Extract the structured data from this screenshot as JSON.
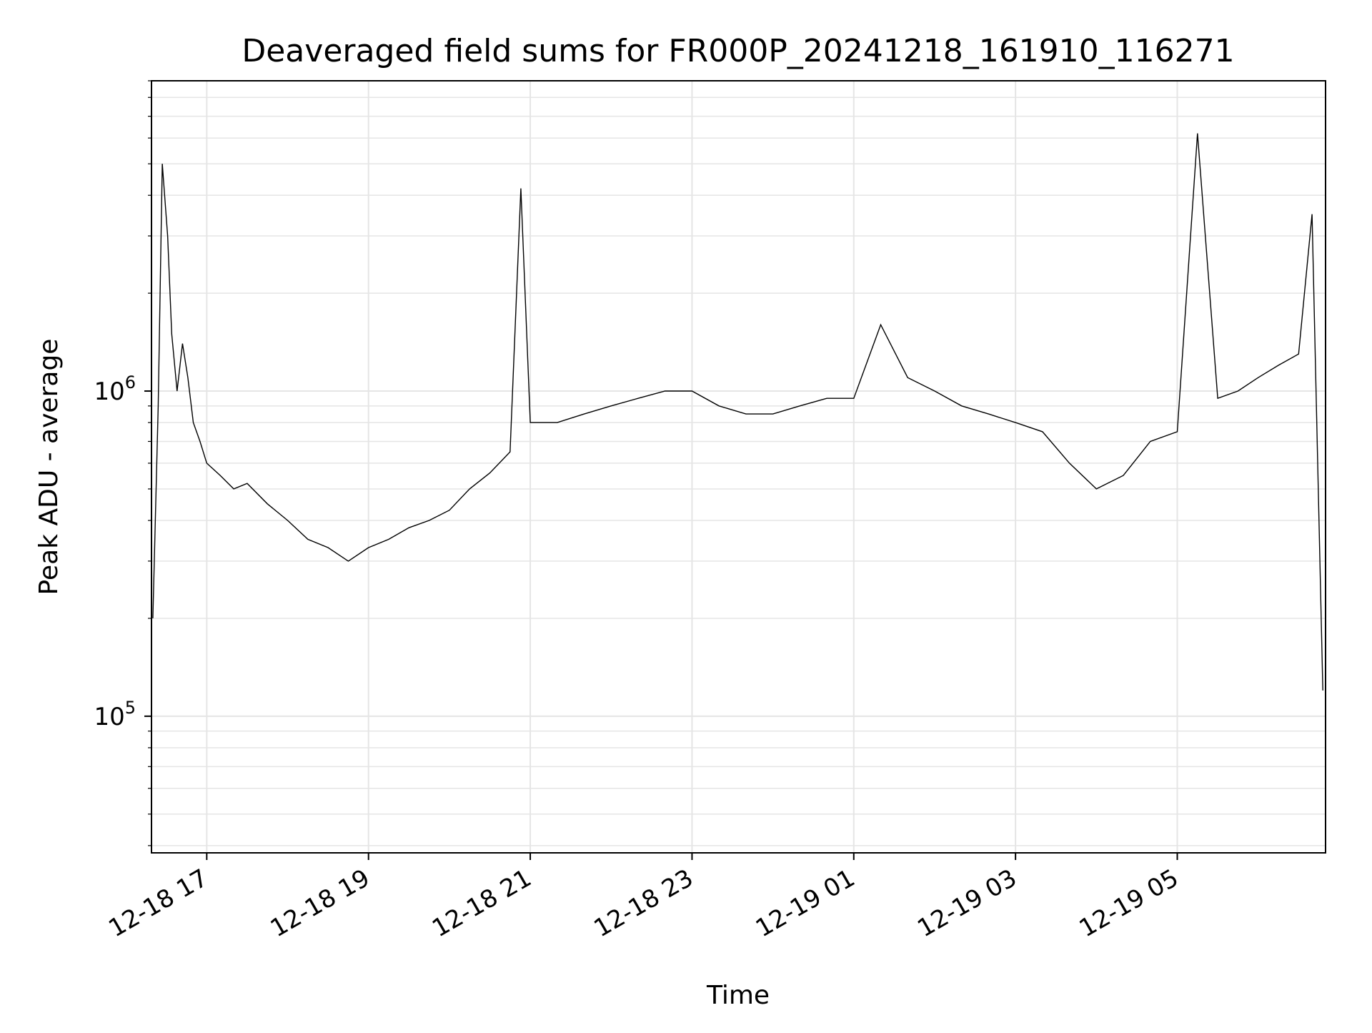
{
  "chart_data": {
    "type": "line",
    "title": "Deaveraged field sums for FR000P_20241218_161910_116271",
    "xlabel": "Time",
    "ylabel": "Peak ADU - average",
    "yscale": "log",
    "ylim": [
      38000,
      9000000
    ],
    "xlim": [
      "2024-12-18 16:19",
      "2024-12-19 06:50"
    ],
    "grid": true,
    "line_color": "#000000",
    "x_ticks": [
      {
        "label": "12-18 17",
        "time": "2024-12-18 17:00"
      },
      {
        "label": "12-18 19",
        "time": "2024-12-18 19:00"
      },
      {
        "label": "12-18 21",
        "time": "2024-12-18 21:00"
      },
      {
        "label": "12-18 23",
        "time": "2024-12-18 23:00"
      },
      {
        "label": "12-19 01",
        "time": "2024-12-19 01:00"
      },
      {
        "label": "12-19 03",
        "time": "2024-12-19 03:00"
      },
      {
        "label": "12-19 05",
        "time": "2024-12-19 05:00"
      }
    ],
    "y_ticks": [
      {
        "base": "10",
        "exp": "5",
        "value": 100000
      },
      {
        "base": "10",
        "exp": "6",
        "value": 1000000
      }
    ],
    "series": [
      {
        "x": [
          "2024-12-18 16:20",
          "2024-12-18 16:24",
          "2024-12-18 16:27",
          "2024-12-18 16:31",
          "2024-12-18 16:34",
          "2024-12-18 16:38",
          "2024-12-18 16:42",
          "2024-12-18 16:46",
          "2024-12-18 16:50",
          "2024-12-18 16:55",
          "2024-12-18 17:00",
          "2024-12-18 17:10",
          "2024-12-18 17:20",
          "2024-12-18 17:30",
          "2024-12-18 17:45",
          "2024-12-18 18:00",
          "2024-12-18 18:15",
          "2024-12-18 18:30",
          "2024-12-18 18:45",
          "2024-12-18 19:00",
          "2024-12-18 19:15",
          "2024-12-18 19:30",
          "2024-12-18 19:45",
          "2024-12-18 20:00",
          "2024-12-18 20:15",
          "2024-12-18 20:30",
          "2024-12-18 20:45",
          "2024-12-18 20:53",
          "2024-12-18 21:00",
          "2024-12-18 21:20",
          "2024-12-18 21:40",
          "2024-12-18 22:00",
          "2024-12-18 22:20",
          "2024-12-18 22:40",
          "2024-12-18 23:00",
          "2024-12-18 23:20",
          "2024-12-18 23:40",
          "2024-12-19 00:00",
          "2024-12-19 00:20",
          "2024-12-19 00:40",
          "2024-12-19 01:00",
          "2024-12-19 01:20",
          "2024-12-19 01:40",
          "2024-12-19 02:00",
          "2024-12-19 02:20",
          "2024-12-19 02:40",
          "2024-12-19 03:00",
          "2024-12-19 03:20",
          "2024-12-19 03:40",
          "2024-12-19 04:00",
          "2024-12-19 04:20",
          "2024-12-19 04:40",
          "2024-12-19 05:00",
          "2024-12-19 05:15",
          "2024-12-19 05:30",
          "2024-12-19 05:45",
          "2024-12-19 06:00",
          "2024-12-19 06:15",
          "2024-12-19 06:30",
          "2024-12-19 06:40",
          "2024-12-19 06:48"
        ],
        "y": [
          200000,
          900000,
          5000000,
          3000000,
          1500000,
          1000000,
          1400000,
          1100000,
          800000,
          700000,
          600000,
          550000,
          500000,
          520000,
          450000,
          400000,
          350000,
          330000,
          300000,
          330000,
          350000,
          380000,
          400000,
          430000,
          500000,
          560000,
          650000,
          4200000,
          800000,
          800000,
          850000,
          900000,
          950000,
          1000000,
          1000000,
          900000,
          850000,
          850000,
          900000,
          950000,
          950000,
          1600000,
          1100000,
          1000000,
          900000,
          850000,
          800000,
          750000,
          600000,
          500000,
          550000,
          700000,
          750000,
          6200000,
          950000,
          1000000,
          1100000,
          1200000,
          1300000,
          3500000,
          120000
        ]
      }
    ]
  }
}
